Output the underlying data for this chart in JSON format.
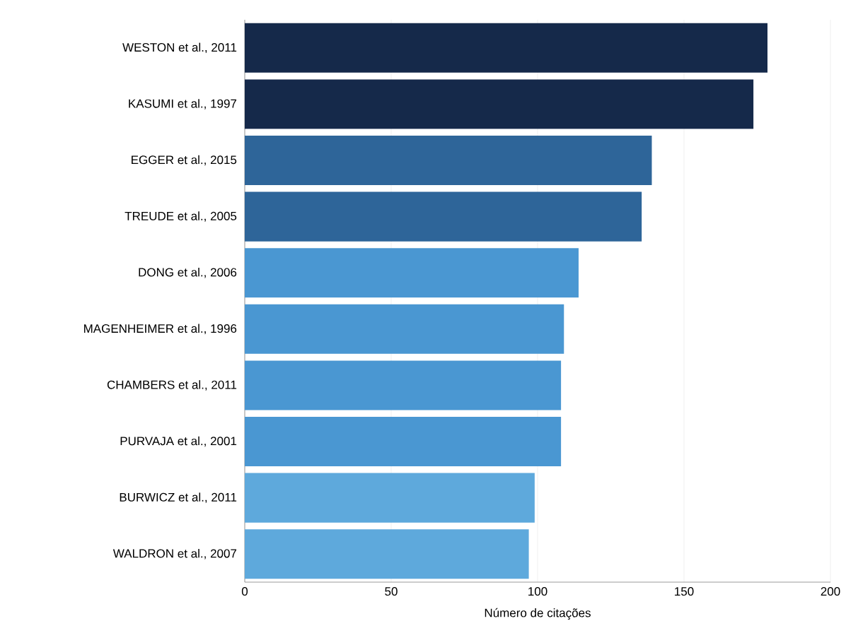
{
  "chart_data": {
    "type": "bar",
    "orientation": "horizontal",
    "xlabel": "Número de citações",
    "categories": [
      "WESTON et al., 2011",
      "KASUMI et al., 1997",
      "EGGER et al., 2015",
      "TREUDE et al., 2005",
      "DONG et al., 2006",
      "MAGENHEIMER et al., 1996",
      "CHAMBERS et al., 2011",
      "PURVAJA et al., 2001",
      "BURWICZ et al., 2011",
      "WALDRON et al., 2007"
    ],
    "values": [
      178.5,
      173.7,
      139,
      135.6,
      114,
      109,
      108,
      108,
      99,
      97
    ],
    "colors": [
      "#15294a",
      "#15294a",
      "#2e6599",
      "#2e6599",
      "#4a97d2",
      "#4a97d2",
      "#4a97d2",
      "#4a97d2",
      "#5ea9dc",
      "#5ea9dc"
    ],
    "xlim": [
      0,
      200
    ],
    "xticks": [
      0,
      50,
      100,
      150,
      200
    ],
    "grid": "x"
  }
}
